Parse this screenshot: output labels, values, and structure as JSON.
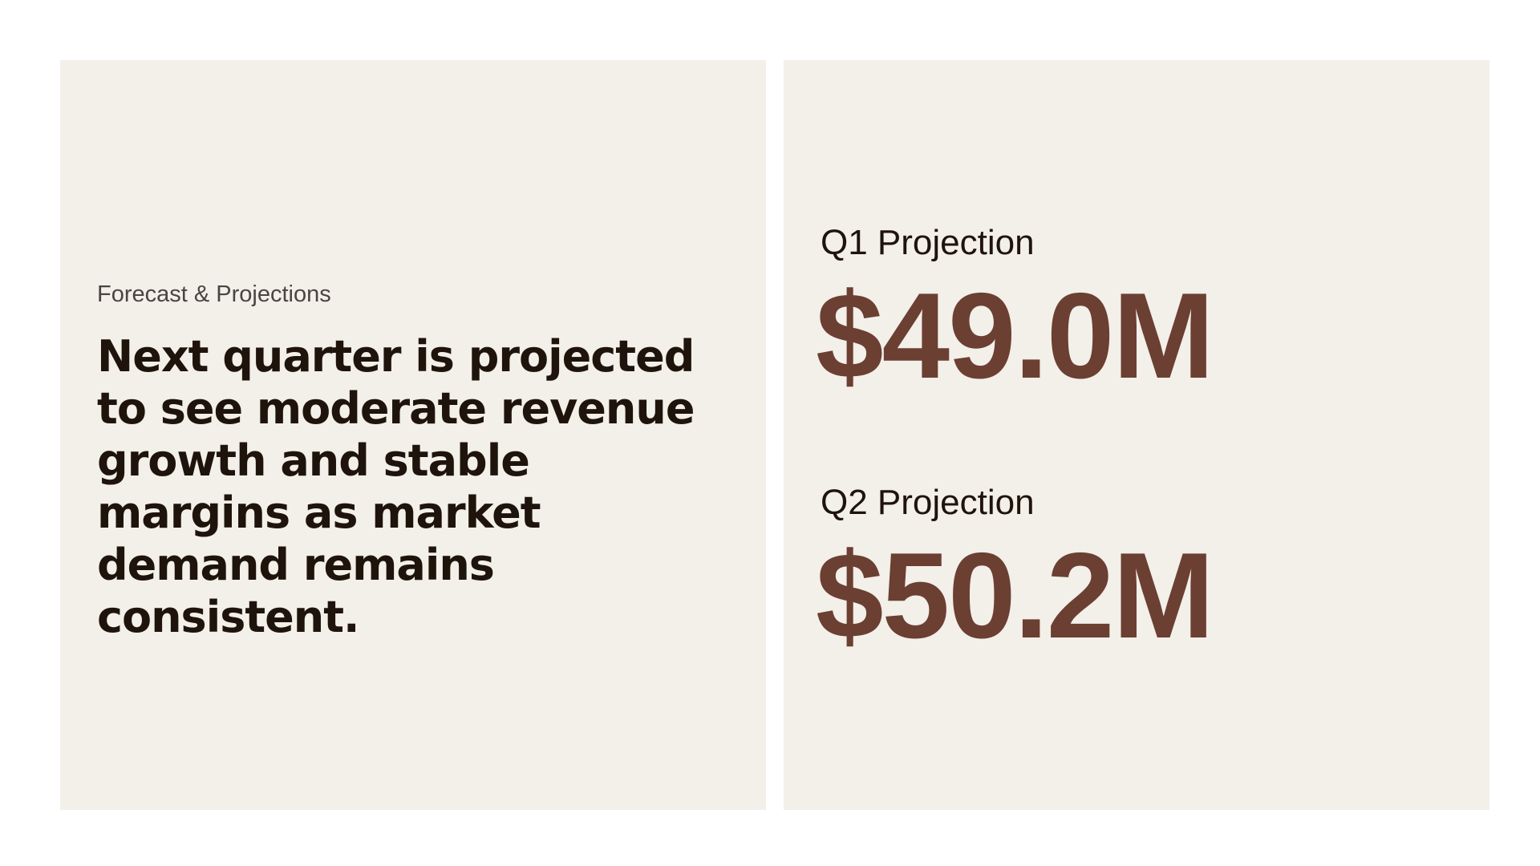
{
  "left_panel": {
    "eyebrow": "Forecast & Projections",
    "headline": "Next quarter is projected to see moderate revenue growth and stable margins as market demand remains consistent."
  },
  "right_panel": {
    "metrics": [
      {
        "label": "Q1 Projection",
        "value": "$49.0M"
      },
      {
        "label": "Q2 Projection",
        "value": "$50.2M"
      }
    ]
  },
  "colors": {
    "panel_background": "#f3efe9",
    "headline_text": "#1e140c",
    "accent_value": "#6b3f32"
  }
}
